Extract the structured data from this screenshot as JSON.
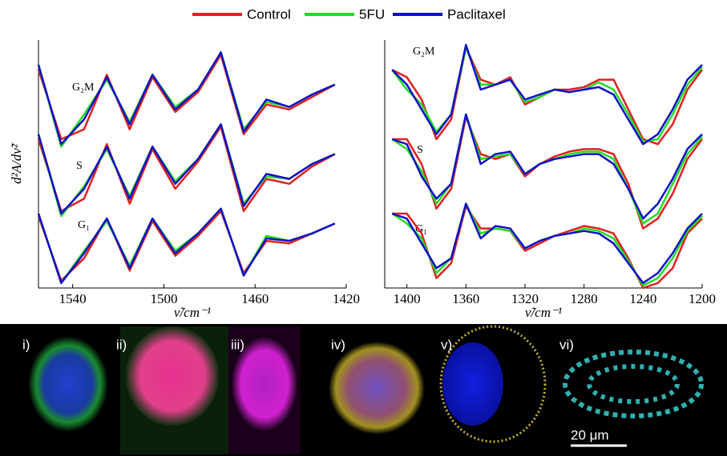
{
  "legend": [
    {
      "name": "Control",
      "color": "#e02020"
    },
    {
      "name": "5FU",
      "color": "#22dd22"
    },
    {
      "name": "Paclitaxel",
      "color": "#1010c8"
    }
  ],
  "y_label": "d²A/dν̃²",
  "chart_data": [
    {
      "type": "line",
      "x_label": "ν̃/cm⁻¹",
      "groups": [
        "G₂M",
        "S",
        "G₁"
      ],
      "x": [
        1555,
        1545,
        1535,
        1525,
        1515,
        1505,
        1495,
        1485,
        1475,
        1465,
        1455,
        1445,
        1435,
        1425
      ],
      "xlim": [
        1555,
        1420
      ],
      "xticks": [
        1540,
        1500,
        1460,
        1420
      ],
      "ylim": [
        0,
        100
      ],
      "series": [
        {
          "values": [
            [
              88,
              60,
              64,
              86,
              64,
              85,
              71,
              79,
              94,
              62,
              74,
              72,
              77,
              82
            ],
            [
              60,
              31,
              36,
              58,
              34,
              56,
              40,
              51,
              65,
              31,
              44,
              42,
              49,
              54
            ],
            [
              29,
              3,
              12,
              28,
              7,
              27,
              13,
              21,
              31,
              6,
              19,
              18,
              22,
              26
            ]
          ]
        },
        {
          "values": [
            [
              90,
              57,
              70,
              84,
              67,
              86,
              73,
              80,
              95,
              64,
              75,
              73,
              78,
              82
            ],
            [
              62,
              29,
              41,
              56,
              37,
              57,
              43,
              52,
              66,
              34,
              45,
              44,
              50,
              54
            ],
            [
              30,
              2,
              15,
              27,
              9,
              28,
              15,
              22,
              32,
              5,
              21,
              19,
              22,
              26
            ]
          ]
        },
        {
          "values": [
            [
              90,
              58,
              68,
              85,
              66,
              86,
              72,
              80,
              95,
              63,
              76,
              73,
              78,
              82
            ],
            [
              62,
              30,
              40,
              57,
              36,
              57,
              42,
              52,
              66,
              33,
              46,
              44,
              50,
              54
            ],
            [
              30,
              2,
              14,
              28,
              8,
              28,
              14,
              22,
              32,
              5,
              20,
              19,
              22,
              26
            ]
          ]
        }
      ]
    },
    {
      "type": "line",
      "x_label": "ν̃/cm⁻¹",
      "groups": [
        "G₂M",
        "S",
        "G₁"
      ],
      "x": [
        1410,
        1400,
        1390,
        1380,
        1370,
        1360,
        1350,
        1340,
        1330,
        1320,
        1310,
        1300,
        1290,
        1280,
        1270,
        1260,
        1250,
        1240,
        1230,
        1220,
        1210,
        1200
      ],
      "xlim": [
        1415,
        1200
      ],
      "xticks": [
        1400,
        1360,
        1320,
        1280,
        1240,
        1200
      ],
      "ylim": [
        0,
        100
      ],
      "series": [
        {
          "values": [
            [
              88,
              85,
              76,
              60,
              68,
              97,
              84,
              82,
              85,
              74,
              77,
              80,
              80,
              81,
              84,
              84,
              72,
              60,
              58,
              66,
              80,
              88
            ],
            [
              60,
              60,
              50,
              32,
              40,
              69,
              54,
              52,
              54,
              45,
              50,
              53,
              55,
              56,
              56,
              54,
              42,
              24,
              28,
              38,
              52,
              60
            ],
            [
              30,
              30,
              22,
              4,
              10,
              33,
              24,
              24,
              23,
              15,
              18,
              21,
              23,
              25,
              24,
              22,
              12,
              0,
              2,
              8,
              22,
              28
            ]
          ]
        },
        {
          "values": [
            [
              88,
              80,
              74,
              63,
              70,
              97,
              82,
              82,
              84,
              75,
              77,
              80,
              79,
              80,
              83,
              80,
              70,
              59,
              60,
              70,
              82,
              89
            ],
            [
              60,
              56,
              47,
              34,
              42,
              70,
              52,
              53,
              54,
              46,
              50,
              52,
              54,
              55,
              55,
              52,
              40,
              26,
              30,
              42,
              54,
              61
            ],
            [
              30,
              26,
              20,
              6,
              12,
              34,
              22,
              24,
              23,
              16,
              19,
              21,
              22,
              24,
              23,
              20,
              11,
              1,
              4,
              12,
              23,
              29
            ]
          ]
        },
        {
          "values": [
            [
              88,
              82,
              72,
              62,
              70,
              98,
              80,
              82,
              84,
              76,
              78,
              80,
              79,
              80,
              81,
              78,
              68,
              58,
              62,
              72,
              84,
              90
            ],
            [
              60,
              58,
              45,
              36,
              42,
              70,
              50,
              54,
              55,
              46,
              50,
              52,
              53,
              54,
              54,
              50,
              40,
              28,
              34,
              44,
              56,
              62
            ],
            [
              30,
              28,
              18,
              8,
              12,
              34,
              20,
              25,
              24,
              16,
              19,
              21,
              22,
              23,
              22,
              18,
              10,
              2,
              6,
              14,
              24,
              30
            ]
          ]
        }
      ]
    }
  ],
  "images": {
    "panels": [
      "i)",
      "ii)",
      "iii)",
      "iv)",
      "v)",
      "vi)"
    ],
    "scale_bar": "20 μm"
  }
}
